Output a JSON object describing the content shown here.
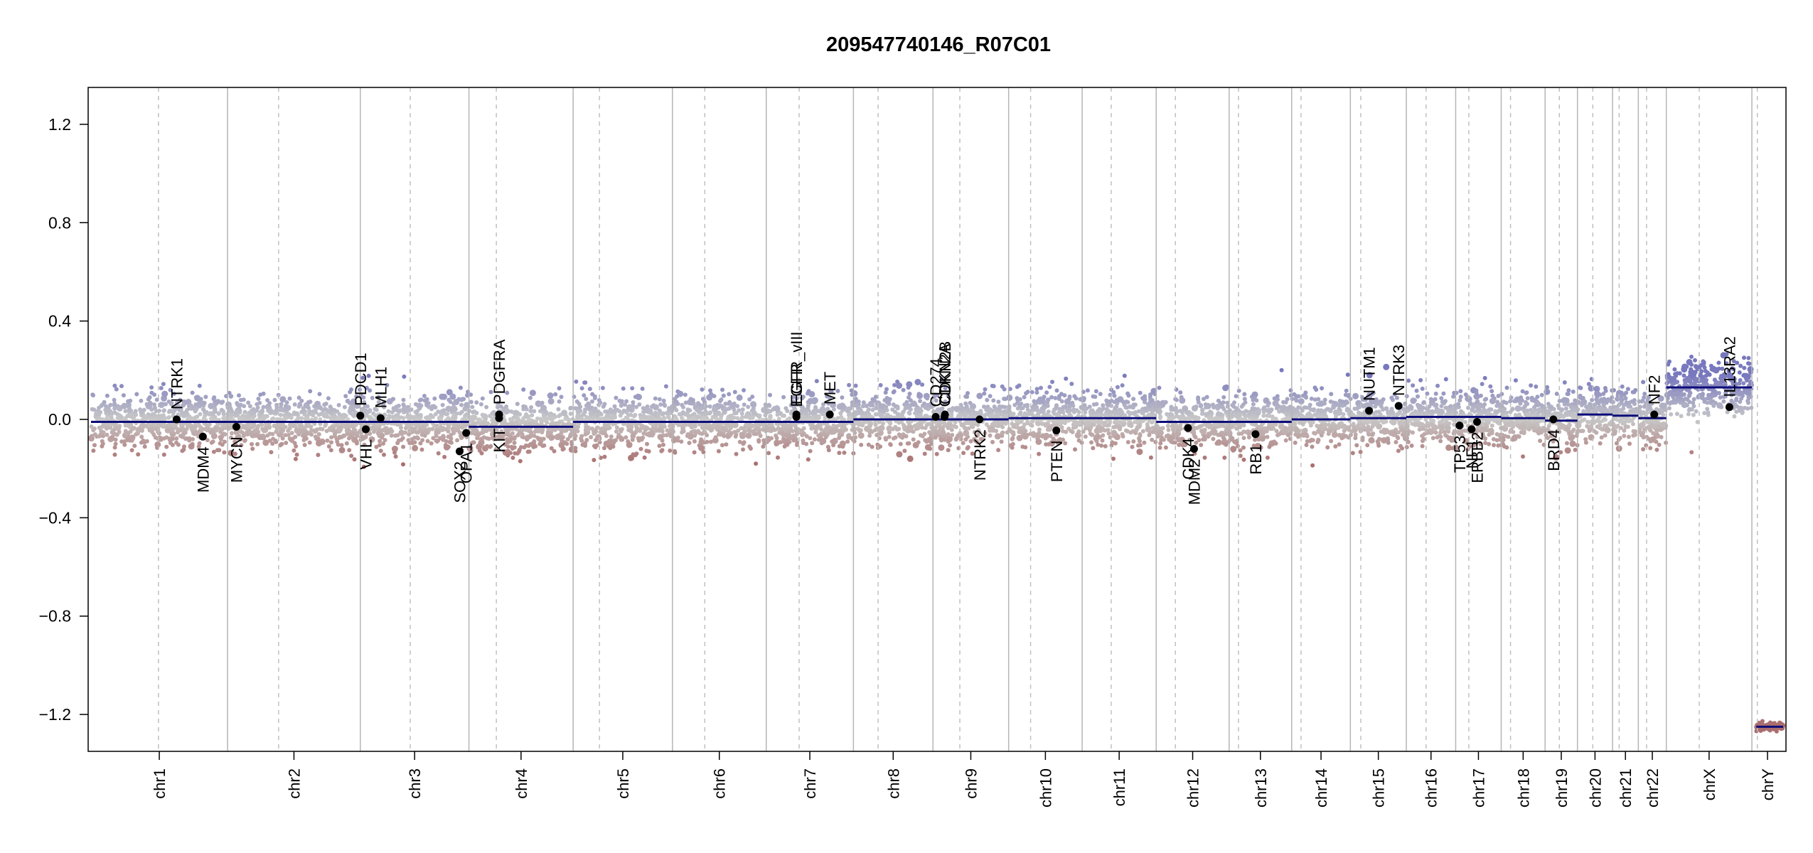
{
  "chart_data": {
    "type": "scatter",
    "title": "209547740146_R07C01",
    "xlabel": "",
    "ylabel": "",
    "ylim": [
      -1.35,
      1.35
    ],
    "yticks": [
      "1.2",
      "0.8",
      "0.4",
      "0.0",
      "−0.4",
      "−0.8",
      "−1.2"
    ],
    "ytick_values": [
      1.2,
      0.8,
      0.4,
      0.0,
      -0.4,
      -0.8,
      -1.2
    ],
    "grid": false,
    "colors": {
      "positive": "#8c8cc4",
      "negative": "#b88484",
      "segment": "#0d0d7a",
      "gene_point": "#000000"
    },
    "chromosomes": [
      {
        "name": "chr1",
        "size": 249,
        "centromere": 123,
        "segments": [
          [
            0,
            249,
            -0.01
          ]
        ]
      },
      {
        "name": "chr2",
        "size": 242,
        "centromere": 93,
        "segments": [
          [
            0,
            242,
            -0.01
          ]
        ]
      },
      {
        "name": "chr3",
        "size": 198,
        "centromere": 91,
        "segments": [
          [
            0,
            198,
            -0.01
          ]
        ]
      },
      {
        "name": "chr4",
        "size": 190,
        "centromere": 50,
        "segments": [
          [
            0,
            190,
            -0.03
          ]
        ]
      },
      {
        "name": "chr5",
        "size": 181,
        "centromere": 48,
        "segments": [
          [
            0,
            181,
            -0.01
          ]
        ]
      },
      {
        "name": "chr6",
        "size": 171,
        "centromere": 59,
        "segments": [
          [
            0,
            171,
            -0.01
          ]
        ]
      },
      {
        "name": "chr7",
        "size": 159,
        "centromere": 60,
        "segments": [
          [
            0,
            159,
            -0.01
          ]
        ]
      },
      {
        "name": "chr8",
        "size": 145,
        "centromere": 45,
        "segments": [
          [
            0,
            145,
            0.0
          ]
        ]
      },
      {
        "name": "chr9",
        "size": 138,
        "centromere": 49,
        "segments": [
          [
            0,
            138,
            0.0
          ]
        ]
      },
      {
        "name": "chr10",
        "size": 134,
        "centromere": 40,
        "segments": [
          [
            0,
            134,
            0.005
          ]
        ]
      },
      {
        "name": "chr11",
        "size": 135,
        "centromere": 53,
        "segments": [
          [
            0,
            135,
            0.005
          ]
        ]
      },
      {
        "name": "chr12",
        "size": 133,
        "centromere": 35,
        "segments": [
          [
            0,
            133,
            -0.01
          ]
        ]
      },
      {
        "name": "chr13",
        "size": 114,
        "centromere": 17,
        "segments": [
          [
            0,
            114,
            -0.01
          ]
        ]
      },
      {
        "name": "chr14",
        "size": 107,
        "centromere": 17,
        "segments": [
          [
            0,
            107,
            0.0
          ]
        ]
      },
      {
        "name": "chr15",
        "size": 102,
        "centromere": 19,
        "segments": [
          [
            0,
            102,
            0.005
          ]
        ]
      },
      {
        "name": "chr16",
        "size": 90,
        "centromere": 36,
        "segments": [
          [
            0,
            90,
            0.01
          ]
        ]
      },
      {
        "name": "chr17",
        "size": 83,
        "centromere": 24,
        "segments": [
          [
            0,
            83,
            0.01
          ]
        ]
      },
      {
        "name": "chr18",
        "size": 80,
        "centromere": 17,
        "segments": [
          [
            0,
            80,
            0.005
          ]
        ]
      },
      {
        "name": "chr19",
        "size": 59,
        "centromere": 26,
        "segments": [
          [
            0,
            59,
            -0.005
          ]
        ]
      },
      {
        "name": "chr20",
        "size": 64,
        "centromere": 28,
        "segments": [
          [
            0,
            64,
            0.02
          ]
        ]
      },
      {
        "name": "chr21",
        "size": 47,
        "centromere": 12,
        "segments": [
          [
            0,
            47,
            0.015
          ]
        ]
      },
      {
        "name": "chr22",
        "size": 51,
        "centromere": 15,
        "segments": [
          [
            0,
            51,
            0.005
          ]
        ]
      },
      {
        "name": "chrX",
        "size": 156,
        "centromere": 60,
        "segments": [
          [
            0,
            156,
            0.13
          ]
        ]
      },
      {
        "name": "chrY",
        "size": 57,
        "centromere": 10,
        "segments": [
          [
            8,
            57,
            -1.25
          ]
        ]
      }
    ],
    "genes": [
      {
        "name": "NTRK1",
        "chr": "chr1",
        "pos": 156,
        "value": 0.0,
        "label_side": "above"
      },
      {
        "name": "MDM4",
        "chr": "chr1",
        "pos": 204,
        "value": -0.07,
        "label_side": "below"
      },
      {
        "name": "MYCN",
        "chr": "chr2",
        "pos": 16,
        "value": -0.03,
        "label_side": "below"
      },
      {
        "name": "PDCD1",
        "chr": "chr2",
        "pos": 242,
        "value": 0.015,
        "label_side": "above"
      },
      {
        "name": "VHL",
        "chr": "chr3",
        "pos": 10,
        "value": -0.04,
        "label_side": "below"
      },
      {
        "name": "MLH1",
        "chr": "chr3",
        "pos": 37,
        "value": 0.005,
        "label_side": "above"
      },
      {
        "name": "SOX2",
        "chr": "chr3",
        "pos": 181,
        "value": -0.13,
        "label_side": "below"
      },
      {
        "name": "OPA1",
        "chr": "chr3",
        "pos": 193,
        "value": -0.055,
        "label_side": "below"
      },
      {
        "name": "KIT",
        "chr": "chr4",
        "pos": 55,
        "value": 0.005,
        "label_side": "below"
      },
      {
        "name": "PDGFRA",
        "chr": "chr4",
        "pos": 55,
        "value": 0.02,
        "label_side": "above"
      },
      {
        "name": "EGFR",
        "chr": "chr7",
        "pos": 55,
        "value": 0.01,
        "label_side": "above"
      },
      {
        "name": "EGFR_vIII",
        "chr": "chr7",
        "pos": 55,
        "value": 0.02,
        "label_side": "above"
      },
      {
        "name": "MET",
        "chr": "chr7",
        "pos": 116,
        "value": 0.02,
        "label_side": "above"
      },
      {
        "name": "CD274",
        "chr": "chr9",
        "pos": 5,
        "value": 0.01,
        "label_side": "above"
      },
      {
        "name": "CDKN2A",
        "chr": "chr9",
        "pos": 21,
        "value": 0.01,
        "label_side": "above"
      },
      {
        "name": "CDKN2B",
        "chr": "chr9",
        "pos": 22,
        "value": 0.02,
        "label_side": "above"
      },
      {
        "name": "NTRK2",
        "chr": "chr9",
        "pos": 85,
        "value": 0.0,
        "label_side": "below"
      },
      {
        "name": "PTEN",
        "chr": "chr10",
        "pos": 87,
        "value": -0.045,
        "label_side": "below"
      },
      {
        "name": "CDK4",
        "chr": "chr12",
        "pos": 58,
        "value": -0.035,
        "label_side": "below"
      },
      {
        "name": "MDM2",
        "chr": "chr12",
        "pos": 69,
        "value": -0.12,
        "label_side": "below"
      },
      {
        "name": "RB1",
        "chr": "chr13",
        "pos": 48,
        "value": -0.06,
        "label_side": "below"
      },
      {
        "name": "NUTM1",
        "chr": "chr15",
        "pos": 34,
        "value": 0.035,
        "label_side": "above"
      },
      {
        "name": "NTRK3",
        "chr": "chr15",
        "pos": 88,
        "value": 0.055,
        "label_side": "above"
      },
      {
        "name": "TP53",
        "chr": "chr17",
        "pos": 7,
        "value": -0.025,
        "label_side": "below"
      },
      {
        "name": "NF1",
        "chr": "chr17",
        "pos": 29,
        "value": -0.04,
        "label_side": "below"
      },
      {
        "name": "ERBB2",
        "chr": "chr17",
        "pos": 39,
        "value": -0.01,
        "label_side": "below"
      },
      {
        "name": "BRD4",
        "chr": "chr19",
        "pos": 15,
        "value": 0.0,
        "label_side": "below"
      },
      {
        "name": "NF2",
        "chr": "chr22",
        "pos": 29,
        "value": 0.02,
        "label_side": "above"
      },
      {
        "name": "IL13RA2",
        "chr": "chrX",
        "pos": 115,
        "value": 0.05,
        "label_side": "above"
      }
    ]
  }
}
